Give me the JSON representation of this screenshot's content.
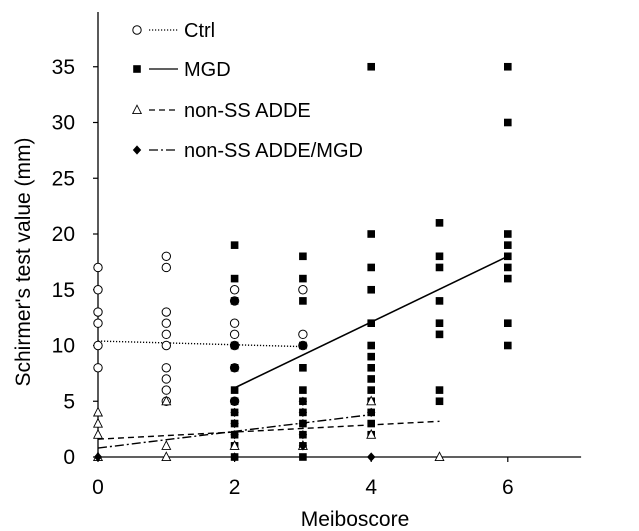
{
  "chart_data": {
    "type": "scatter",
    "title": "",
    "xlabel": "Meiboscore",
    "ylabel": "Schirmer's test value (mm)",
    "xlim": [
      0,
      7
    ],
    "ylim": [
      0,
      40
    ],
    "xticks": [
      0,
      2,
      4,
      6
    ],
    "yticks": [
      0,
      5,
      10,
      15,
      20,
      25,
      30,
      35
    ],
    "grid": false,
    "legend_position": "top-left",
    "series": [
      {
        "name": "Ctrl",
        "marker": "open-circle",
        "line_style": "dotted",
        "points": [
          [
            0,
            17
          ],
          [
            0,
            15
          ],
          [
            0,
            13
          ],
          [
            0,
            12
          ],
          [
            0,
            10
          ],
          [
            0,
            8
          ],
          [
            1,
            18
          ],
          [
            1,
            17
          ],
          [
            1,
            13
          ],
          [
            1,
            12
          ],
          [
            1,
            11
          ],
          [
            1,
            10
          ],
          [
            1,
            8
          ],
          [
            1,
            7
          ],
          [
            1,
            6
          ],
          [
            1,
            5
          ],
          [
            2,
            15
          ],
          [
            2,
            14
          ],
          [
            2,
            12
          ],
          [
            2,
            11
          ],
          [
            2,
            10
          ],
          [
            2,
            8
          ],
          [
            2,
            5
          ],
          [
            3,
            15
          ],
          [
            3,
            11
          ],
          [
            3,
            10
          ]
        ],
        "trend": [
          [
            0,
            10.4
          ],
          [
            3,
            9.9
          ]
        ]
      },
      {
        "name": "MGD",
        "marker": "filled-square",
        "line_style": "solid",
        "points": [
          [
            2,
            19
          ],
          [
            2,
            16
          ],
          [
            2,
            14
          ],
          [
            2,
            10
          ],
          [
            2,
            8
          ],
          [
            2,
            6
          ],
          [
            2,
            5
          ],
          [
            2,
            4
          ],
          [
            2,
            3
          ],
          [
            2,
            2
          ],
          [
            2,
            1
          ],
          [
            2,
            0
          ],
          [
            3,
            18
          ],
          [
            3,
            16
          ],
          [
            3,
            14
          ],
          [
            3,
            10
          ],
          [
            3,
            8
          ],
          [
            3,
            6
          ],
          [
            3,
            5
          ],
          [
            3,
            4
          ],
          [
            3,
            3
          ],
          [
            3,
            2
          ],
          [
            3,
            1
          ],
          [
            3,
            0
          ],
          [
            4,
            35
          ],
          [
            4,
            20
          ],
          [
            4,
            17
          ],
          [
            4,
            15
          ],
          [
            4,
            12
          ],
          [
            4,
            10
          ],
          [
            4,
            9
          ],
          [
            4,
            8
          ],
          [
            4,
            7
          ],
          [
            4,
            6
          ],
          [
            4,
            5
          ],
          [
            4,
            4
          ],
          [
            4,
            3
          ],
          [
            4,
            2
          ],
          [
            5,
            21
          ],
          [
            5,
            18
          ],
          [
            5,
            17
          ],
          [
            5,
            14
          ],
          [
            5,
            12
          ],
          [
            5,
            11
          ],
          [
            5,
            6
          ],
          [
            5,
            5
          ],
          [
            6,
            35
          ],
          [
            6,
            30
          ],
          [
            6,
            20
          ],
          [
            6,
            19
          ],
          [
            6,
            18
          ],
          [
            6,
            17
          ],
          [
            6,
            16
          ],
          [
            6,
            12
          ],
          [
            6,
            10
          ]
        ],
        "trend": [
          [
            2,
            6.2
          ],
          [
            6,
            18
          ]
        ]
      },
      {
        "name": "non-SS ADDE",
        "marker": "open-triangle",
        "line_style": "dashed",
        "points": [
          [
            0,
            4
          ],
          [
            0,
            3
          ],
          [
            0,
            2
          ],
          [
            0,
            0
          ],
          [
            1,
            5
          ],
          [
            1,
            1
          ],
          [
            1,
            0
          ],
          [
            2,
            1
          ],
          [
            3,
            1
          ],
          [
            4,
            5
          ],
          [
            4,
            2
          ],
          [
            5,
            0
          ]
        ],
        "trend": [
          [
            0,
            1.6
          ],
          [
            5,
            3.2
          ]
        ]
      },
      {
        "name": "non-SS ADDE/MGD",
        "marker": "filled-diamond",
        "line_style": "dash-dot",
        "points": [
          [
            0,
            0
          ],
          [
            2,
            4
          ],
          [
            2,
            3
          ],
          [
            2,
            2
          ],
          [
            2,
            0
          ],
          [
            3,
            5
          ],
          [
            3,
            4
          ],
          [
            3,
            3
          ],
          [
            3,
            2
          ],
          [
            3,
            1
          ],
          [
            4,
            4
          ],
          [
            4,
            0
          ]
        ],
        "trend": [
          [
            0,
            0.8
          ],
          [
            4,
            3.8
          ]
        ]
      }
    ]
  }
}
